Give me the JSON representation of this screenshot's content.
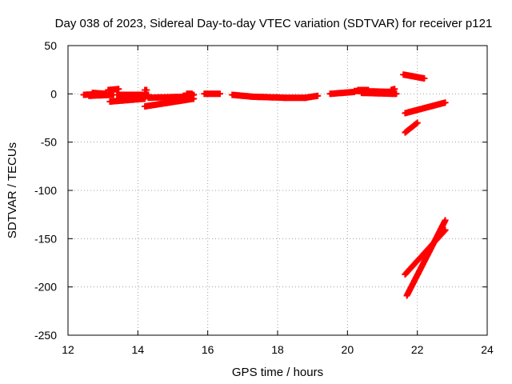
{
  "chart_data": {
    "type": "scatter",
    "title": "Day 038 of 2023, Sidereal Day-to-day VTEC variation (SDTVAR) for receiver p121",
    "xlabel": "GPS time / hours",
    "ylabel": "SDTVAR / TECUs",
    "xlim": [
      12,
      24
    ],
    "ylim": [
      -250,
      50
    ],
    "xticks": [
      12,
      14,
      16,
      18,
      20,
      22,
      24
    ],
    "yticks": [
      -250,
      -200,
      -150,
      -100,
      -50,
      0,
      50
    ],
    "grid": true,
    "grid_style": "dotted",
    "marker": "plus",
    "colors": {
      "series": "#ff0000",
      "grid": "#a0a0a0",
      "frame": "#000000"
    },
    "segments": [
      {
        "x0": 12.45,
        "y0": -1,
        "x1": 13.0,
        "y1": 0
      },
      {
        "x0": 12.6,
        "y0": -2,
        "x1": 13.3,
        "y1": -1
      },
      {
        "x0": 12.7,
        "y0": 1,
        "x1": 13.1,
        "y1": 0
      },
      {
        "x0": 13.15,
        "y0": 4,
        "x1": 13.45,
        "y1": 5
      },
      {
        "x0": 13.2,
        "y0": -8,
        "x1": 14.2,
        "y1": -5
      },
      {
        "x0": 13.5,
        "y0": -5,
        "x1": 14.3,
        "y1": -2
      },
      {
        "x0": 13.4,
        "y0": -1,
        "x1": 14.3,
        "y1": -1
      },
      {
        "x0": 14.2,
        "y0": 4,
        "x1": 14.25,
        "y1": 4
      },
      {
        "x0": 14.2,
        "y0": -13,
        "x1": 15.6,
        "y1": -5
      },
      {
        "x0": 14.3,
        "y0": -4,
        "x1": 15.4,
        "y1": -3
      },
      {
        "x0": 14.8,
        "y0": -8,
        "x1": 15.5,
        "y1": -4
      },
      {
        "x0": 15.3,
        "y0": -2,
        "x1": 15.6,
        "y1": -1
      },
      {
        "x0": 15.4,
        "y0": 0,
        "x1": 15.55,
        "y1": 0
      },
      {
        "x0": 15.9,
        "y0": 0,
        "x1": 16.35,
        "y1": 0
      },
      {
        "x0": 16.7,
        "y0": -1,
        "x1": 17.3,
        "y1": -3
      },
      {
        "x0": 17.3,
        "y0": -3,
        "x1": 18.2,
        "y1": -4
      },
      {
        "x0": 18.2,
        "y0": -4,
        "x1": 18.8,
        "y1": -4
      },
      {
        "x0": 18.8,
        "y0": -4,
        "x1": 19.15,
        "y1": -2
      },
      {
        "x0": 19.5,
        "y0": 0,
        "x1": 20.2,
        "y1": 2
      },
      {
        "x0": 20.2,
        "y0": 3,
        "x1": 21.3,
        "y1": 2
      },
      {
        "x0": 20.3,
        "y0": 4,
        "x1": 20.6,
        "y1": 4
      },
      {
        "x0": 20.4,
        "y0": 1,
        "x1": 21.4,
        "y1": 0
      },
      {
        "x0": 21.25,
        "y0": 4,
        "x1": 21.35,
        "y1": 5
      },
      {
        "x0": 21.6,
        "y0": 20,
        "x1": 22.2,
        "y1": 16
      },
      {
        "x0": 21.65,
        "y0": -20,
        "x1": 22.8,
        "y1": -9
      },
      {
        "x0": 21.65,
        "y0": -40,
        "x1": 22.0,
        "y1": -30
      },
      {
        "x0": 21.65,
        "y0": -187,
        "x1": 22.8,
        "y1": -141
      },
      {
        "x0": 21.7,
        "y0": -209,
        "x1": 22.8,
        "y1": -131
      }
    ]
  }
}
